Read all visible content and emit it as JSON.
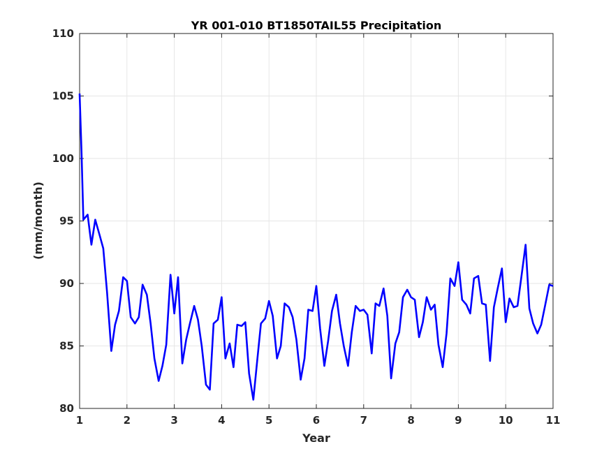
{
  "chart_data": {
    "type": "line",
    "title": "YR 001-010 BT1850TAIL55 Precipitation",
    "xlabel": "Year",
    "ylabel": "(mm/month)",
    "xlim": [
      1,
      11
    ],
    "ylim": [
      80,
      110
    ],
    "xticks": [
      1,
      2,
      3,
      4,
      5,
      6,
      7,
      8,
      9,
      10,
      11
    ],
    "yticks": [
      80,
      85,
      90,
      95,
      100,
      105,
      110
    ],
    "grid": true,
    "colors": {
      "series": "#0000ff",
      "grid": "#e6e6e6",
      "axis": "#262626"
    },
    "series": [
      {
        "x": [
          1.0,
          1.04,
          1.08,
          1.17,
          1.25,
          1.33,
          1.42,
          1.5,
          1.58,
          1.67,
          1.75,
          1.83,
          1.92,
          2.0,
          2.08,
          2.17,
          2.25,
          2.33,
          2.42,
          2.5,
          2.58,
          2.67,
          2.75,
          2.83,
          2.92,
          3.0,
          3.08,
          3.17,
          3.25,
          3.33,
          3.42,
          3.5,
          3.58,
          3.67,
          3.75,
          3.83,
          3.92,
          4.0,
          4.08,
          4.17,
          4.25,
          4.33,
          4.42,
          4.5,
          4.58,
          4.67,
          4.75,
          4.83,
          4.92,
          5.0,
          5.08,
          5.17,
          5.25,
          5.33,
          5.42,
          5.5,
          5.58,
          5.67,
          5.75,
          5.83,
          5.92,
          6.0,
          6.08,
          6.17,
          6.25,
          6.33,
          6.42,
          6.5,
          6.58,
          6.67,
          6.75,
          6.83,
          6.92,
          7.0,
          7.08,
          7.17,
          7.25,
          7.33,
          7.42,
          7.5,
          7.58,
          7.67,
          7.75,
          7.83,
          7.92,
          8.0,
          8.08,
          8.17,
          8.25,
          8.33,
          8.42,
          8.5,
          8.58,
          8.67,
          8.75,
          8.83,
          8.92,
          9.0,
          9.08,
          9.17,
          9.25,
          9.33,
          9.42,
          9.5,
          9.58,
          9.67,
          9.75,
          9.83,
          9.92,
          10.0,
          10.08,
          10.17,
          10.25,
          10.33,
          10.42,
          10.5,
          10.58,
          10.67,
          10.75,
          10.83,
          10.92,
          11.0
        ],
        "y": [
          105.2,
          100.6,
          95.1,
          95.5,
          93.1,
          95.1,
          93.9,
          92.8,
          89.3,
          84.6,
          86.7,
          87.8,
          90.5,
          90.2,
          87.3,
          86.8,
          87.3,
          89.9,
          89.1,
          86.8,
          84.0,
          82.2,
          83.4,
          85.1,
          90.7,
          87.6,
          90.5,
          83.6,
          85.5,
          86.8,
          88.2,
          87.1,
          85.0,
          81.9,
          81.5,
          86.8,
          87.1,
          88.9,
          84.0,
          85.2,
          83.3,
          86.7,
          86.6,
          86.9,
          82.8,
          80.7,
          83.8,
          86.8,
          87.2,
          88.6,
          87.4,
          84.0,
          85.0,
          88.4,
          88.1,
          87.3,
          85.5,
          82.3,
          84.0,
          87.9,
          87.8,
          89.8,
          86.4,
          83.4,
          85.4,
          87.8,
          89.1,
          86.8,
          85.0,
          83.4,
          86.1,
          88.2,
          87.8,
          87.9,
          87.5,
          84.4,
          88.4,
          88.2,
          89.6,
          87.4,
          82.4,
          85.2,
          86.1,
          88.9,
          89.5,
          88.9,
          88.7,
          85.7,
          86.9,
          88.9,
          87.9,
          88.3,
          85.1,
          83.3,
          86.0,
          90.4,
          89.8,
          91.7,
          88.7,
          88.3,
          87.6,
          90.4,
          90.6,
          88.4,
          88.3,
          83.8,
          88.1,
          89.6,
          91.2,
          86.9,
          88.8,
          88.1,
          88.2,
          90.5,
          93.1,
          88.0,
          86.8,
          86.0,
          86.7,
          88.2,
          89.9,
          89.8
        ]
      }
    ]
  }
}
